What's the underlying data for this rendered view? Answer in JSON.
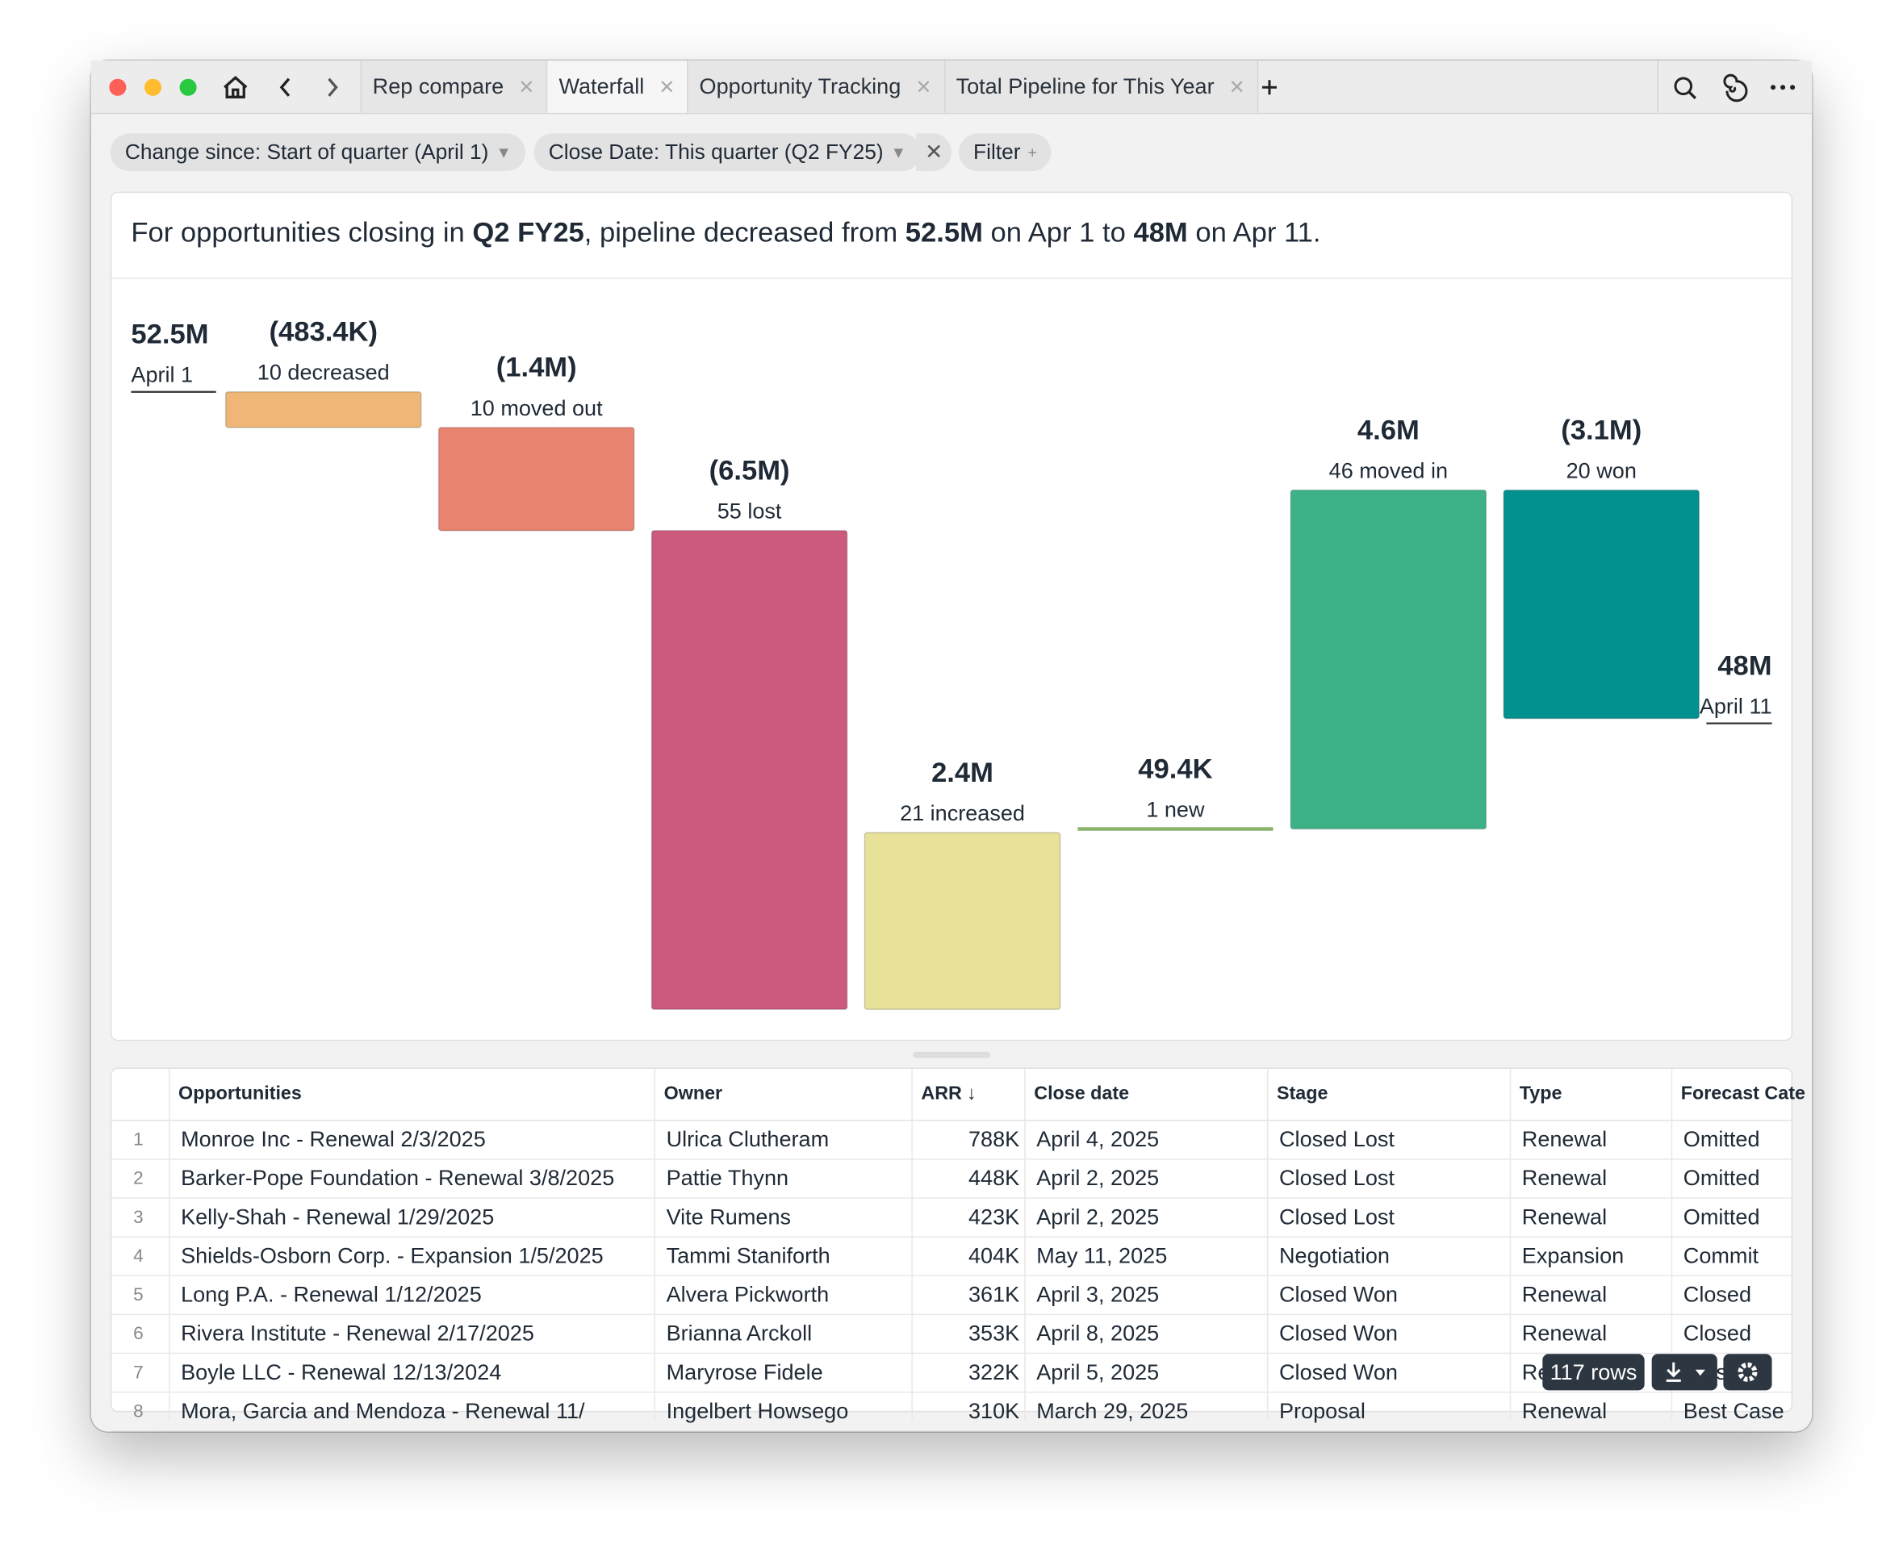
{
  "tabs": [
    "Rep compare",
    "Waterfall",
    "Opportunity Tracking",
    "Total Pipeline for This Year"
  ],
  "active_tab": 1,
  "filters": [
    "Change since: Start of quarter (April 1)",
    "Close Date: This quarter (Q2 FY25)",
    "Filter"
  ],
  "summary": [
    {
      "text": "For opportunities closing in ",
      "bold": false
    },
    {
      "text": "Q2 FY25",
      "bold": true
    },
    {
      "text": ", pipeline decreased from ",
      "bold": false
    },
    {
      "text": "52.5M",
      "bold": true
    },
    {
      "text": " on Apr 1 to ",
      "bold": false
    },
    {
      "text": "48M",
      "bold": true
    },
    {
      "text": " on Apr 11.",
      "bold": false
    }
  ],
  "chart_data": {
    "type": "waterfall",
    "start": {
      "label": "April 1",
      "value": 52.5,
      "value_label": "52.5M"
    },
    "end": {
      "label": "April 11",
      "value": 48,
      "value_label": "48M"
    },
    "categories": [
      "10 decreased",
      "10 moved out",
      "55 lost",
      "21 increased",
      "1 new",
      "46 moved in",
      "20 won"
    ],
    "values": [
      -0.4834,
      -1.4,
      -6.5,
      2.4,
      0.0494,
      4.6,
      -3.1
    ],
    "value_labels": [
      "(483.4K)",
      "(1.4M)",
      "(6.5M)",
      "2.4M",
      "49.4K",
      "4.6M",
      "(3.1M)"
    ],
    "colors": [
      "#efb677",
      "#e8836f",
      "#cc5a7c",
      "#e8e19a",
      "#8cb36c",
      "#3cb286",
      "#01928f"
    ]
  },
  "table": {
    "columns": [
      "",
      "Opportunities",
      "Owner",
      "ARR",
      "Close date",
      "Stage",
      "Type",
      "Forecast Cate"
    ],
    "rows": [
      [
        "1",
        "Monroe Inc - Renewal 2/3/2025",
        "Ulrica Clutheram",
        "788K",
        "April 4, 2025",
        "Closed Lost",
        "Renewal",
        "Omitted"
      ],
      [
        "2",
        "Barker-Pope Foundation - Renewal 3/8/2025",
        "Pattie Thynn",
        "448K",
        "April 2, 2025",
        "Closed Lost",
        "Renewal",
        "Omitted"
      ],
      [
        "3",
        "Kelly-Shah - Renewal 1/29/2025",
        "Vite Rumens",
        "423K",
        "April 2, 2025",
        "Closed Lost",
        "Renewal",
        "Omitted"
      ],
      [
        "4",
        "Shields-Osborn Corp. - Expansion 1/5/2025",
        "Tammi Staniforth",
        "404K",
        "May 11, 2025",
        "Negotiation",
        "Expansion",
        "Commit"
      ],
      [
        "5",
        "Long P.A. - Renewal 1/12/2025",
        "Alvera Pickworth",
        "361K",
        "April 3, 2025",
        "Closed Won",
        "Renewal",
        "Closed"
      ],
      [
        "6",
        "Rivera Institute - Renewal 2/17/2025",
        "Brianna Arckoll",
        "353K",
        "April 8, 2025",
        "Closed Won",
        "Renewal",
        "Closed"
      ],
      [
        "7",
        "Boyle LLC - Renewal 12/13/2024",
        "Maryrose Fidele",
        "322K",
        "April 5, 2025",
        "Closed Won",
        "Renewal",
        "Closed"
      ],
      [
        "8",
        "Mora, Garcia and Mendoza - Renewal 11/",
        "Ingelbert Howsego",
        "310K",
        "March 29, 2025",
        "Proposal",
        "Renewal",
        "Best Case"
      ]
    ]
  },
  "row_count": "117 rows"
}
